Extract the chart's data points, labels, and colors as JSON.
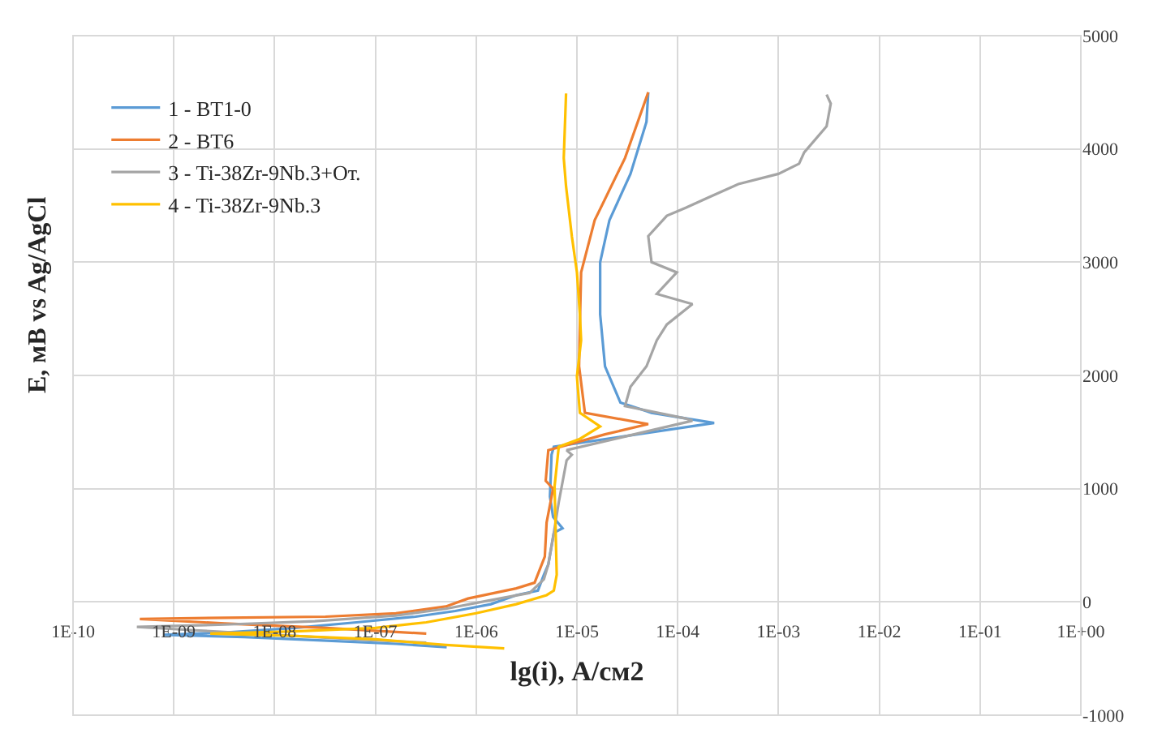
{
  "chart_data": {
    "type": "line",
    "xlabel": "lg(i), А/см2",
    "ylabel": "E, мВ vs Ag/AgCl",
    "log": "x",
    "grid": true,
    "legend": "top left",
    "marker": "none",
    "line_style": "solid",
    "xlim": [
      1e-10,
      1
    ],
    "xticks": [
      {
        "value": 1e-10,
        "label": "1E-10"
      },
      {
        "value": 1e-09,
        "label": "1E-09"
      },
      {
        "value": 1e-08,
        "label": "1E-08"
      },
      {
        "value": 1e-07,
        "label": "1E-07"
      },
      {
        "value": 1e-06,
        "label": "1E-06"
      },
      {
        "value": 1e-05,
        "label": "1E-05"
      },
      {
        "value": 0.0001,
        "label": "1E-04"
      },
      {
        "value": 0.001,
        "label": "1E-03"
      },
      {
        "value": 0.01,
        "label": "1E-02"
      },
      {
        "value": 0.1,
        "label": "1E-01"
      },
      {
        "value": 1,
        "label": "1E+00"
      }
    ],
    "ylim": [
      -1000,
      5000
    ],
    "yticks": [
      -1000,
      0,
      1000,
      2000,
      3000,
      4000,
      5000
    ],
    "series": [
      {
        "name": "1 - BT1-0",
        "color": "#5b9bd5",
        "x": [
          5.1e-07,
          1.6e-07,
          3e-08,
          5e-09,
          7.9e-10,
          3.2e-09,
          1.6e-08,
          6.5e-08,
          2.5e-07,
          6.2e-07,
          1.4e-06,
          2.5e-06,
          4.1e-06,
          4.7e-06,
          5.2e-06,
          5.9e-06,
          7.2e-06,
          5.8e-06,
          5.4e-06,
          5.6e-06,
          5.9e-06,
          0.00023,
          5.5e-05,
          2.7e-05,
          1.9e-05,
          1.7e-05,
          1.7e-05,
          2.1e-05,
          3.4e-05,
          4.9e-05,
          5.1e-05
        ],
        "values": [
          -400,
          -370,
          -340,
          -310,
          -290,
          -270,
          -230,
          -180,
          -130,
          -80,
          -20,
          60,
          100,
          240,
          330,
          610,
          650,
          750,
          930,
          1300,
          1370,
          1580,
          1670,
          1760,
          2080,
          2540,
          3000,
          3370,
          3780,
          4240,
          4500
        ]
      },
      {
        "name": "2 - BT6",
        "color": "#ed7d31",
        "x": [
          3.2e-07,
          3.2e-08,
          3.2e-09,
          4.6e-10,
          3.2e-09,
          3.2e-08,
          1.6e-07,
          5e-07,
          8.3e-07,
          2.5e-06,
          3.8e-06,
          4.8e-06,
          5e-06,
          5.8e-06,
          4.9e-06,
          5.2e-06,
          1.9e-05,
          5.1e-05,
          1.2e-05,
          1.05e-05,
          1.07e-05,
          1.1e-05,
          1.5e-05,
          3e-05,
          5.1e-05
        ],
        "values": [
          -280,
          -230,
          -190,
          -150,
          -140,
          -130,
          -100,
          -40,
          30,
          120,
          170,
          400,
          700,
          1000,
          1070,
          1340,
          1480,
          1570,
          1670,
          2080,
          2450,
          2910,
          3370,
          3920,
          4500
        ]
      },
      {
        "name": "3 - Ti-38Zr-9Nb.3+От.",
        "color": "#a5a5a5",
        "x": [
          3.2e-07,
          6.3e-08,
          1e-08,
          1.6e-09,
          4.3e-10,
          3.2e-09,
          2.5e-08,
          1.6e-07,
          5e-07,
          1.3e-06,
          3.4e-06,
          4.7e-06,
          5.2e-06,
          5.9e-06,
          6.6e-06,
          7.9e-06,
          8.9e-06,
          7.9e-06,
          0.00014,
          0.00012,
          3e-05,
          3.4e-05,
          4.9e-05,
          6.2e-05,
          7.8e-05,
          0.00014,
          6.2e-05,
          9.8e-05,
          5.5e-05,
          5.1e-05,
          7.8e-05,
          0.00012,
          0.0002,
          0.0004,
          0.001,
          0.0016,
          0.0018,
          0.003,
          0.0033,
          0.003
        ],
        "values": [
          -360,
          -330,
          -290,
          -250,
          -220,
          -200,
          -170,
          -120,
          -60,
          10,
          80,
          200,
          330,
          610,
          880,
          1250,
          1300,
          1340,
          1600,
          1620,
          1730,
          1900,
          2080,
          2310,
          2450,
          2630,
          2720,
          2910,
          3000,
          3230,
          3410,
          3480,
          3570,
          3690,
          3780,
          3870,
          3970,
          4200,
          4400,
          4480
        ]
      },
      {
        "name": "4 - Ti-38Zr-9Nb.3",
        "color": "#ffc000",
        "x": [
          1.9e-06,
          5e-07,
          1e-07,
          1.6e-08,
          2.3e-09,
          1.6e-08,
          1e-07,
          3.2e-07,
          1e-06,
          2.5e-06,
          5e-06,
          5.9e-06,
          6.3e-06,
          6e-06,
          6.6e-06,
          1.07e-05,
          1.7e-05,
          1.07e-05,
          1e-05,
          1.1e-05,
          1.07e-05,
          1e-05,
          8.9e-06,
          7.8e-06,
          7.4e-06,
          7.8e-06
        ],
        "values": [
          -410,
          -380,
          -330,
          -300,
          -280,
          -260,
          -230,
          -180,
          -100,
          -20,
          60,
          100,
          240,
          1020,
          1370,
          1440,
          1550,
          1670,
          1990,
          2310,
          2540,
          2910,
          3230,
          3670,
          3920,
          4490
        ]
      }
    ]
  }
}
